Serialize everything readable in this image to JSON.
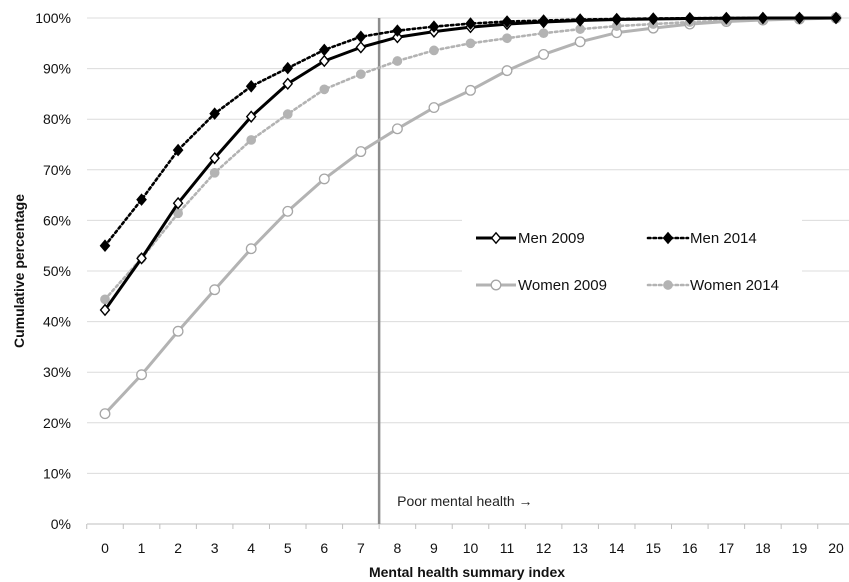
{
  "chart_data": {
    "type": "line",
    "xlabel": "Mental health summary index",
    "ylabel": "Cumulative percentage",
    "x": [
      0,
      1,
      2,
      3,
      4,
      5,
      6,
      7,
      8,
      9,
      10,
      11,
      12,
      13,
      14,
      15,
      16,
      17,
      18,
      19,
      20
    ],
    "xlim": [
      0,
      20
    ],
    "ylim": [
      0,
      100
    ],
    "y_ticks": [
      "0%",
      "10%",
      "20%",
      "30%",
      "40%",
      "50%",
      "60%",
      "70%",
      "80%",
      "90%",
      "100%"
    ],
    "x_ticks": [
      "0",
      "1",
      "2",
      "3",
      "4",
      "5",
      "6",
      "7",
      "8",
      "9",
      "10",
      "11",
      "12",
      "13",
      "14",
      "15",
      "16",
      "17",
      "18",
      "19",
      "20"
    ],
    "grid": "horizontal",
    "legend_position": "center-right",
    "threshold": {
      "x": 7.5,
      "label": "Poor mental health →"
    },
    "series": [
      {
        "name": "Men 2009",
        "color": "#000000",
        "line": "solid",
        "marker": "diamond-open",
        "values": [
          42.3,
          52.5,
          63.4,
          72.3,
          80.5,
          87.0,
          91.5,
          94.2,
          96.2,
          97.3,
          98.2,
          98.8,
          99.2,
          99.5,
          99.7,
          99.8,
          99.9,
          99.95,
          100,
          100,
          100
        ]
      },
      {
        "name": "Men 2014",
        "color": "#000000",
        "line": "dotted",
        "marker": "diamond-filled",
        "values": [
          55.0,
          64.1,
          73.9,
          81.1,
          86.5,
          90.1,
          93.7,
          96.3,
          97.5,
          98.3,
          98.9,
          99.3,
          99.5,
          99.7,
          99.8,
          99.9,
          99.95,
          100,
          100,
          100,
          100
        ]
      },
      {
        "name": "Women 2009",
        "color": "#b3b3b3",
        "line": "solid",
        "marker": "circle-open",
        "values": [
          21.8,
          29.5,
          38.1,
          46.3,
          54.4,
          61.8,
          68.2,
          73.6,
          78.1,
          82.3,
          85.7,
          89.6,
          92.8,
          95.3,
          97.1,
          98.0,
          98.8,
          99.3,
          99.6,
          99.8,
          100
        ]
      },
      {
        "name": "Women 2014",
        "color": "#b3b3b3",
        "line": "dotted",
        "marker": "circle-filled",
        "values": [
          44.4,
          52.5,
          61.4,
          69.4,
          75.9,
          81.0,
          85.9,
          88.9,
          91.5,
          93.6,
          95.0,
          96.0,
          97.0,
          97.8,
          98.4,
          98.8,
          99.2,
          99.5,
          99.7,
          99.9,
          100
        ]
      }
    ]
  }
}
